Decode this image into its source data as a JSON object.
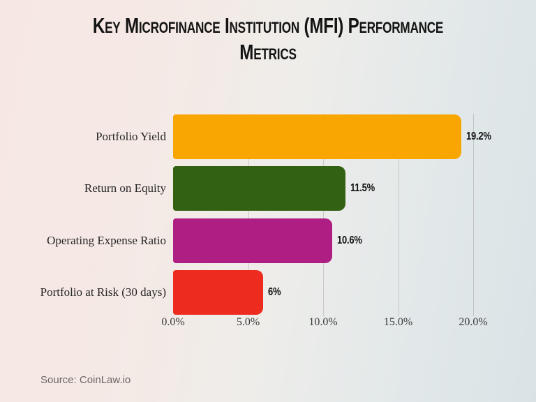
{
  "title": {
    "line1": "Key Microfinance Institution (MFI) Performance",
    "line2": "Metrics"
  },
  "source": {
    "text": "Source: CoinLaw.io"
  },
  "chart_data": {
    "type": "bar",
    "orientation": "horizontal",
    "title": "Key Microfinance Institution (MFI) Performance Metrics",
    "categories": [
      "Portfolio Yield",
      "Return on Equity",
      "Operating Expense Ratio",
      "Portfolio at Risk (30 days)"
    ],
    "values": [
      19.2,
      11.5,
      10.6,
      6
    ],
    "value_labels": [
      "19.2%",
      "11.5%",
      "10.6%",
      "6%"
    ],
    "bar_colors": [
      "#F9A602",
      "#336112",
      "#AE1E83",
      "#ED2B1F"
    ],
    "xlabel": "",
    "ylabel": "",
    "xlim": [
      0,
      20
    ],
    "xticks": [
      0,
      5,
      10,
      15,
      20
    ],
    "xtick_labels": [
      "0.0%",
      "5.0%",
      "10.0%",
      "15.0%",
      "20.0%"
    ],
    "gridlines_at": [
      5,
      10,
      15,
      20
    ],
    "grid": "vertical-only",
    "legend": "none",
    "source": "Source: CoinLaw.io"
  },
  "colors": {
    "background_left": "#f6e7e3",
    "background_right": "#d9e3e6",
    "gridline": "#d8d2ce",
    "title_text": "#141414",
    "category_text": "#262626",
    "tick_text": "#3a3a3a",
    "source_text": "#6b6764"
  }
}
